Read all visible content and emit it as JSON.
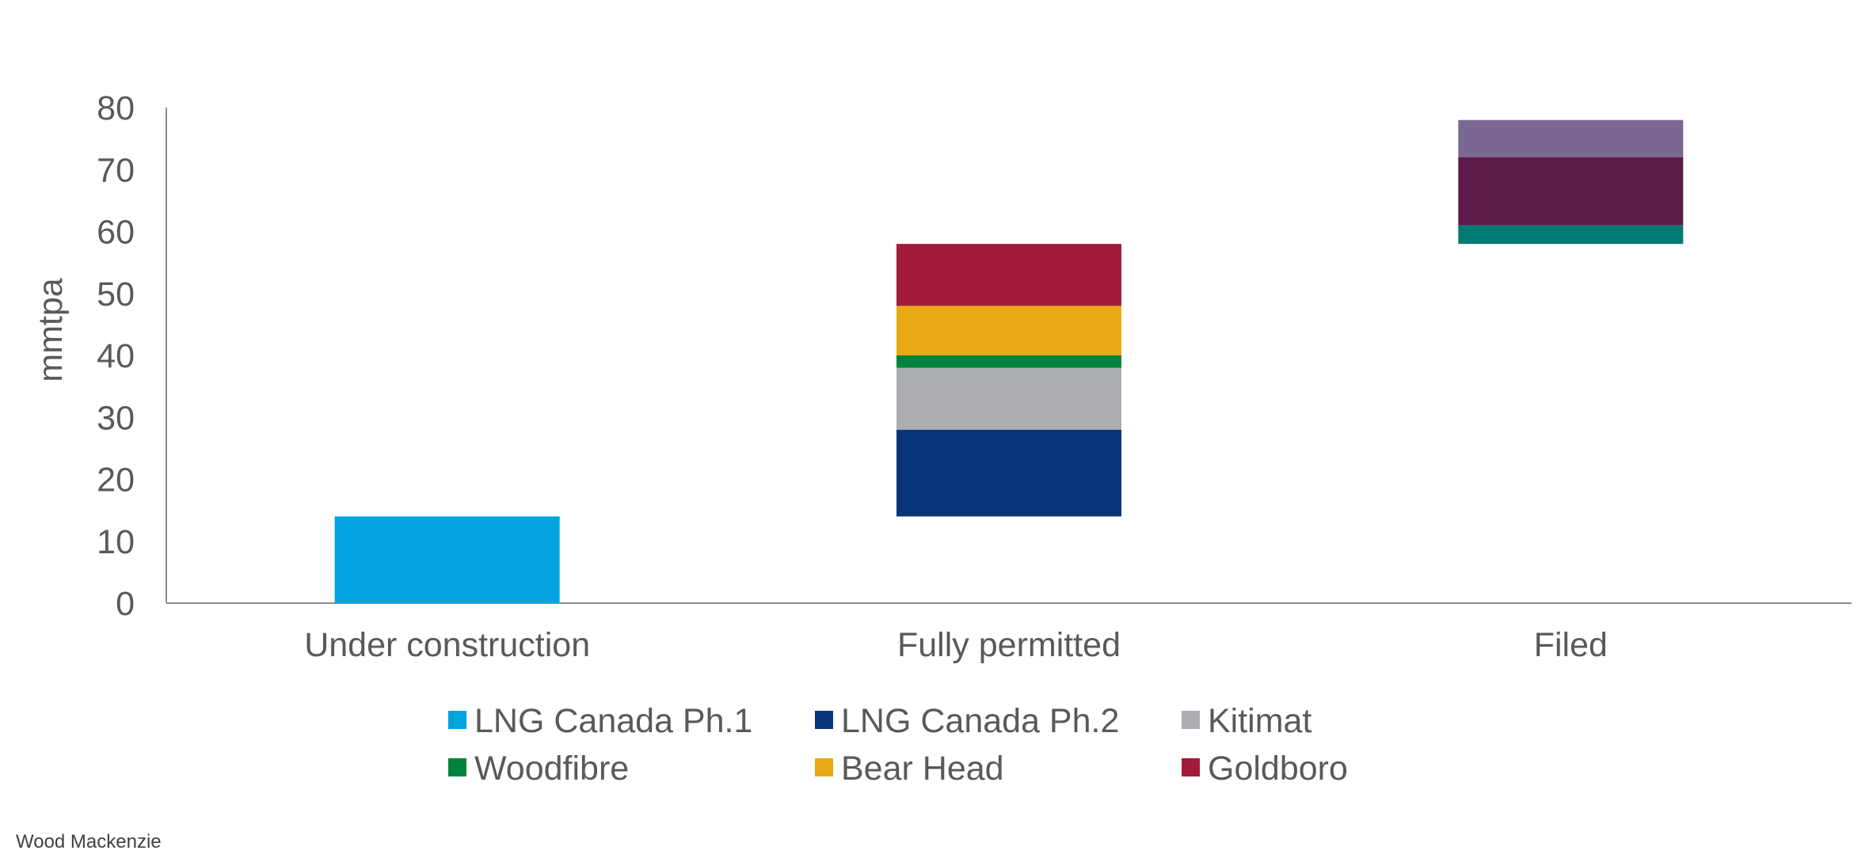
{
  "chart_data": {
    "type": "bar",
    "subtype": "stacked-waterfall",
    "categories": [
      "Under construction",
      "Fully permitted",
      "Filed"
    ],
    "ylabel": "mmtpa",
    "ylim": [
      0,
      80
    ],
    "yticks": [
      0,
      10,
      20,
      30,
      40,
      50,
      60,
      70,
      80
    ],
    "grid": false,
    "legend_position": "bottom",
    "series": [
      {
        "name": "LNG Canada Ph.1",
        "color": "#00A3E0",
        "category": "Under construction",
        "base": 0,
        "value": 14,
        "in_legend": true
      },
      {
        "name": "LNG Canada Ph.2",
        "color": "#06357A",
        "category": "Fully permitted",
        "base": 14,
        "value": 14,
        "in_legend": true
      },
      {
        "name": "Kitimat",
        "color": "#ABADB0",
        "category": "Fully permitted",
        "base": 28,
        "value": 10,
        "in_legend": true
      },
      {
        "name": "Woodfibre",
        "color": "#00843D",
        "category": "Fully permitted",
        "base": 38,
        "value": 2,
        "in_legend": true
      },
      {
        "name": "Bear Head",
        "color": "#EAA814",
        "category": "Fully permitted",
        "base": 40,
        "value": 8,
        "in_legend": true
      },
      {
        "name": "Goldboro",
        "color": "#A21B3A",
        "category": "Fully permitted",
        "base": 48,
        "value": 10,
        "in_legend": true
      },
      {
        "name": "",
        "color": "#007A72",
        "category": "Filed",
        "base": 58,
        "value": 3,
        "in_legend": false
      },
      {
        "name": "",
        "color": "#5C1A48",
        "category": "Filed",
        "base": 61,
        "value": 11,
        "in_legend": false
      },
      {
        "name": "",
        "color": "#7A6794",
        "category": "Filed",
        "base": 72,
        "value": 6,
        "in_legend": false
      }
    ]
  },
  "source": "Wood Mackenzie"
}
